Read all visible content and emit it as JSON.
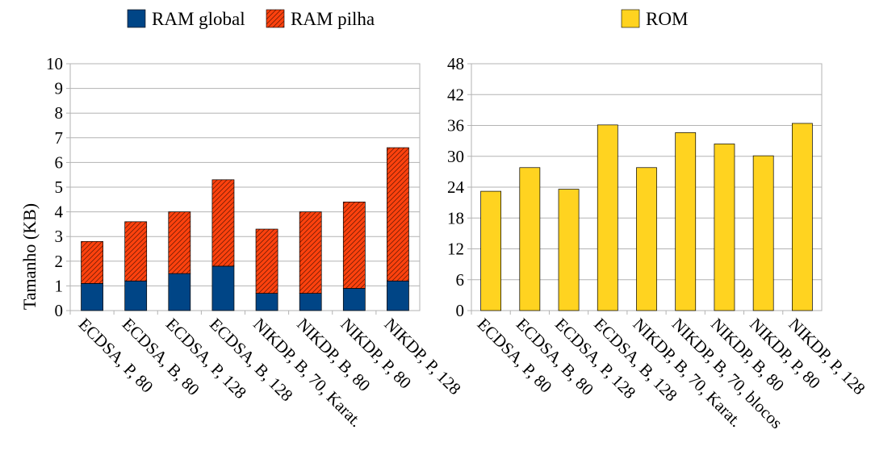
{
  "chart_data": [
    {
      "type": "bar",
      "stacked": true,
      "categories": [
        "ECDSA, P, 80",
        "ECDSA, B, 80",
        "ECDSA, P, 128",
        "ECDSA, B, 128",
        "NIKDP, B, 70, Karat.",
        "NIKDP, B, 80",
        "NIKDP, P, 80",
        "NIKDP, P, 128"
      ],
      "series": [
        {
          "name": "RAM global",
          "color": "#004586",
          "values": [
            1.1,
            1.2,
            1.5,
            1.8,
            0.7,
            0.7,
            0.9,
            1.2
          ]
        },
        {
          "name": "RAM pilha",
          "color": "#ff420e",
          "pattern": "hatched",
          "values": [
            1.7,
            2.4,
            2.5,
            3.5,
            2.6,
            3.3,
            3.5,
            5.4
          ]
        }
      ],
      "ylabel": "Tamanho (KB)",
      "ylim": [
        0,
        10
      ],
      "yticks": [
        0,
        1,
        2,
        3,
        4,
        5,
        6,
        7,
        8,
        9,
        10
      ],
      "grid": true,
      "legend": "top"
    },
    {
      "type": "bar",
      "categories": [
        "ECDSA, P, 80",
        "ECDSA, B, 80",
        "ECDSA, P, 128",
        "ECDSA, B, 128",
        "NIKDP, B, 70, Karat.",
        "NIKDP, B, 70, blocos",
        "NIKDP, B, 80",
        "NIKDP, P, 80",
        "NIKDP, P, 128"
      ],
      "series": [
        {
          "name": "ROM",
          "color": "#ffd320",
          "values": [
            23.2,
            27.8,
            23.6,
            36.1,
            27.8,
            34.6,
            32.4,
            30.1,
            36.4
          ]
        }
      ],
      "ylim": [
        0,
        48
      ],
      "yticks": [
        0,
        6,
        12,
        18,
        24,
        30,
        36,
        42,
        48
      ],
      "grid": true,
      "legend": "top"
    }
  ]
}
